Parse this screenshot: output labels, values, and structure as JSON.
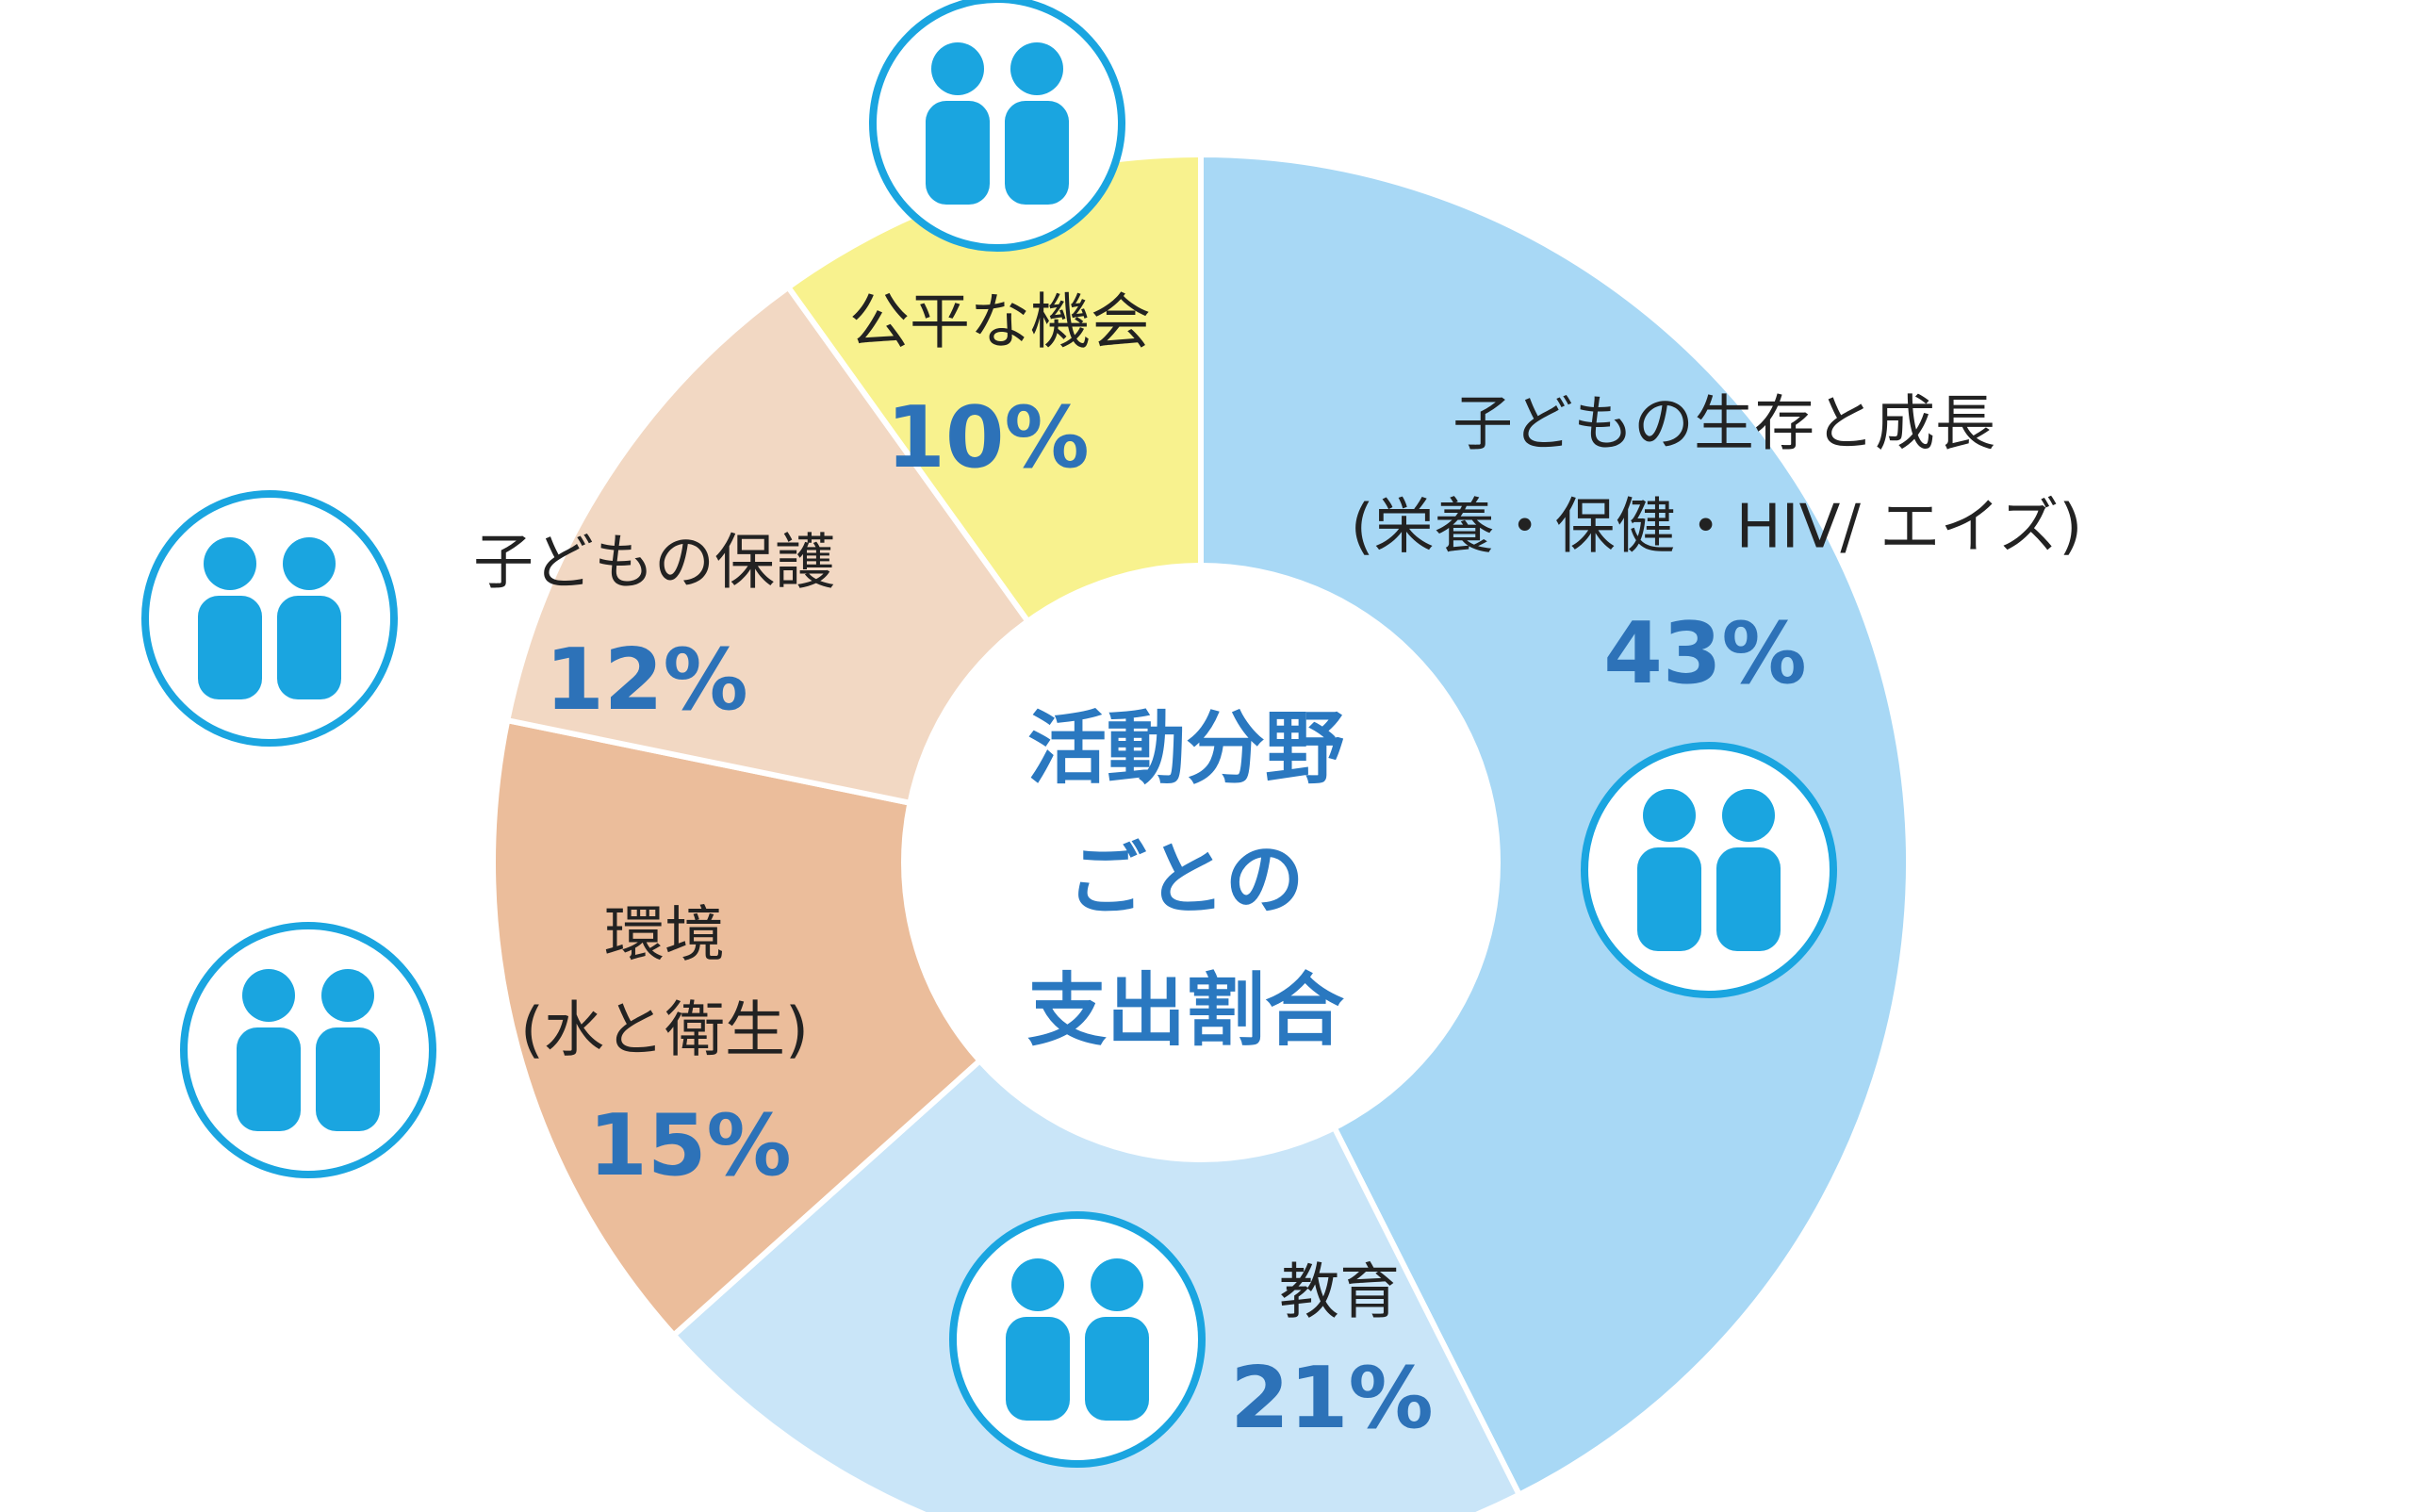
{
  "chart_data": {
    "type": "donut",
    "center_label": [
      "活動分野",
      "ごとの",
      "支出割合"
    ],
    "categories": [
      [
        "子どもの生存と成長",
        "(栄養・保健・HIV/ エイズ)"
      ],
      [
        "教育"
      ],
      [
        "環境",
        "(水と衛生)"
      ],
      [
        "子どもの保護"
      ],
      [
        "公平な機会"
      ]
    ],
    "values": [
      43,
      21,
      15,
      12,
      10
    ],
    "value_labels": [
      "43%",
      "21%",
      "15%",
      "12%",
      "10%"
    ],
    "colors": [
      "#a8d8f5",
      "#c9e5f8",
      "#ebbd9b",
      "#f2d8c3",
      "#f8f28e"
    ]
  }
}
